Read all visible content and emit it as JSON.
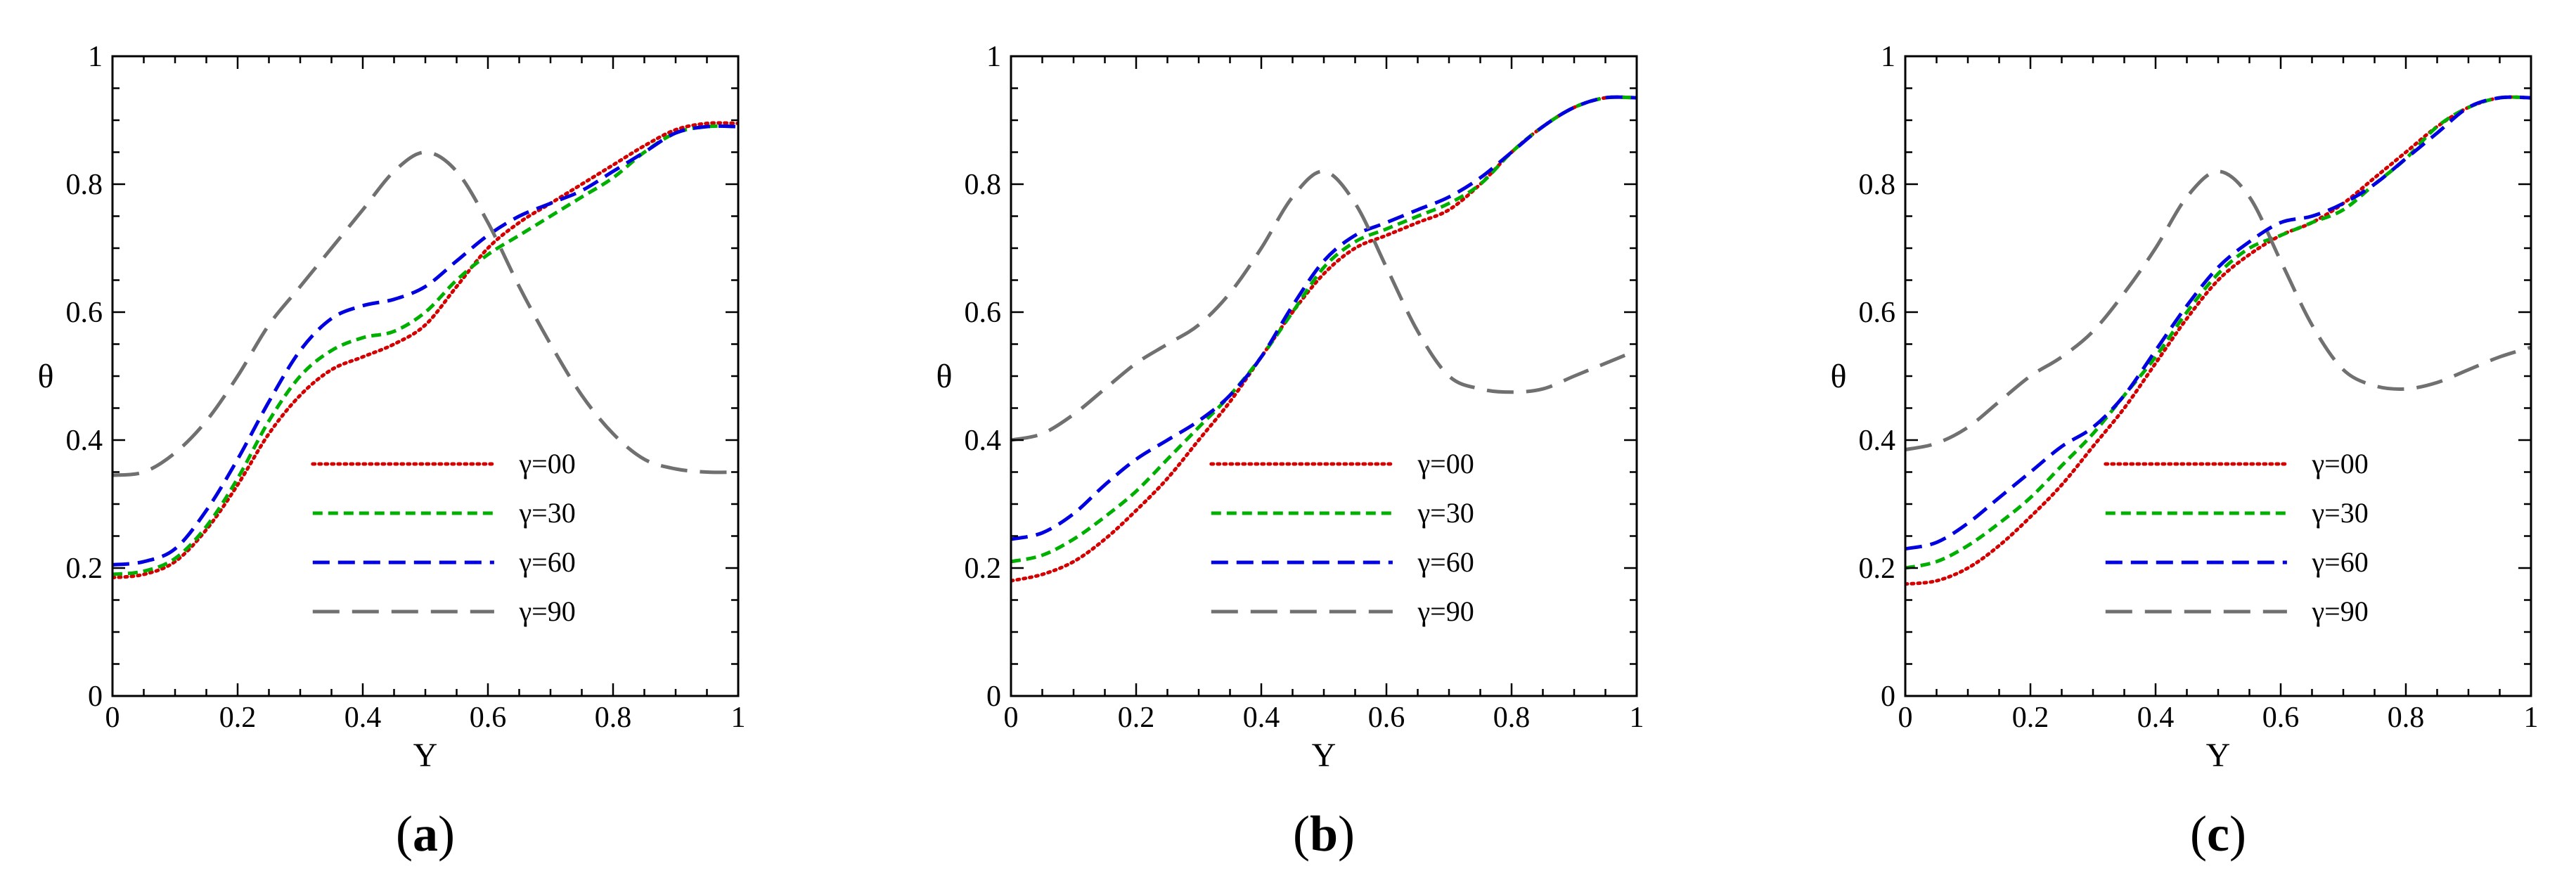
{
  "chart_data": [
    {
      "type": "line",
      "panel_label": "a",
      "xlabel": "Y",
      "ylabel": "θ",
      "xlim": [
        0,
        1
      ],
      "ylim": [
        0,
        1
      ],
      "x_ticks": [
        "0",
        "0.2",
        "0.4",
        "0.6",
        "0.8",
        "1"
      ],
      "y_ticks": [
        "0",
        "0.2",
        "0.4",
        "0.6",
        "0.8",
        "1"
      ],
      "legend_position": "center-right",
      "series": [
        {
          "name": "γ=00",
          "color": "#d40000",
          "dash": "dotted",
          "x": [
            0,
            0.05,
            0.1,
            0.15,
            0.2,
            0.25,
            0.3,
            0.35,
            0.4,
            0.45,
            0.5,
            0.55,
            0.6,
            0.65,
            0.7,
            0.75,
            0.8,
            0.85,
            0.9,
            0.95,
            1.0
          ],
          "y": [
            0.185,
            0.19,
            0.21,
            0.26,
            0.33,
            0.41,
            0.47,
            0.51,
            0.53,
            0.55,
            0.58,
            0.64,
            0.7,
            0.74,
            0.77,
            0.8,
            0.83,
            0.86,
            0.885,
            0.895,
            0.895
          ]
        },
        {
          "name": "γ=30",
          "color": "#00b000",
          "dash": "short-dash",
          "x": [
            0,
            0.05,
            0.1,
            0.15,
            0.2,
            0.25,
            0.3,
            0.35,
            0.4,
            0.45,
            0.5,
            0.55,
            0.6,
            0.65,
            0.7,
            0.75,
            0.8,
            0.85,
            0.9,
            0.95,
            1.0
          ],
          "y": [
            0.19,
            0.195,
            0.215,
            0.265,
            0.34,
            0.43,
            0.5,
            0.54,
            0.56,
            0.57,
            0.6,
            0.65,
            0.69,
            0.72,
            0.75,
            0.78,
            0.81,
            0.85,
            0.88,
            0.89,
            0.89
          ]
        },
        {
          "name": "γ=60",
          "color": "#0000e0",
          "dash": "dash",
          "x": [
            0,
            0.05,
            0.1,
            0.15,
            0.2,
            0.25,
            0.3,
            0.35,
            0.4,
            0.45,
            0.5,
            0.55,
            0.6,
            0.65,
            0.7,
            0.75,
            0.8,
            0.85,
            0.9,
            0.95,
            1.0
          ],
          "y": [
            0.205,
            0.21,
            0.23,
            0.29,
            0.37,
            0.46,
            0.54,
            0.59,
            0.61,
            0.62,
            0.64,
            0.68,
            0.72,
            0.75,
            0.77,
            0.79,
            0.82,
            0.85,
            0.88,
            0.89,
            0.89
          ]
        },
        {
          "name": "γ=90",
          "color": "#707070",
          "dash": "long-dash",
          "x": [
            0,
            0.05,
            0.1,
            0.15,
            0.2,
            0.25,
            0.3,
            0.35,
            0.4,
            0.45,
            0.5,
            0.55,
            0.6,
            0.65,
            0.7,
            0.75,
            0.8,
            0.85,
            0.9,
            0.95,
            1.0
          ],
          "y": [
            0.345,
            0.35,
            0.38,
            0.43,
            0.5,
            0.58,
            0.64,
            0.7,
            0.76,
            0.82,
            0.85,
            0.82,
            0.74,
            0.64,
            0.55,
            0.47,
            0.41,
            0.37,
            0.355,
            0.35,
            0.35
          ]
        }
      ]
    },
    {
      "type": "line",
      "panel_label": "b",
      "xlabel": "Y",
      "ylabel": "θ",
      "xlim": [
        0,
        1
      ],
      "ylim": [
        0,
        1
      ],
      "x_ticks": [
        "0",
        "0.2",
        "0.4",
        "0.6",
        "0.8",
        "1"
      ],
      "y_ticks": [
        "0",
        "0.2",
        "0.4",
        "0.6",
        "0.8",
        "1"
      ],
      "legend_position": "center-right",
      "series": [
        {
          "name": "γ=00",
          "color": "#d40000",
          "dash": "dotted",
          "x": [
            0,
            0.05,
            0.1,
            0.15,
            0.2,
            0.25,
            0.3,
            0.35,
            0.4,
            0.45,
            0.5,
            0.55,
            0.6,
            0.65,
            0.7,
            0.75,
            0.8,
            0.85,
            0.9,
            0.95,
            1.0
          ],
          "y": [
            0.18,
            0.19,
            0.21,
            0.245,
            0.29,
            0.34,
            0.4,
            0.46,
            0.53,
            0.6,
            0.66,
            0.7,
            0.72,
            0.74,
            0.76,
            0.8,
            0.85,
            0.89,
            0.92,
            0.935,
            0.935
          ]
        },
        {
          "name": "γ=30",
          "color": "#00b000",
          "dash": "short-dash",
          "x": [
            0,
            0.05,
            0.1,
            0.15,
            0.2,
            0.25,
            0.3,
            0.35,
            0.4,
            0.45,
            0.5,
            0.55,
            0.6,
            0.65,
            0.7,
            0.75,
            0.8,
            0.85,
            0.9,
            0.95,
            1.0
          ],
          "y": [
            0.21,
            0.22,
            0.245,
            0.28,
            0.32,
            0.37,
            0.42,
            0.47,
            0.53,
            0.6,
            0.67,
            0.71,
            0.73,
            0.75,
            0.77,
            0.8,
            0.85,
            0.89,
            0.92,
            0.935,
            0.935
          ]
        },
        {
          "name": "γ=60",
          "color": "#0000e0",
          "dash": "dash",
          "x": [
            0,
            0.05,
            0.1,
            0.15,
            0.2,
            0.25,
            0.3,
            0.35,
            0.4,
            0.45,
            0.5,
            0.55,
            0.6,
            0.65,
            0.7,
            0.75,
            0.8,
            0.85,
            0.9,
            0.95,
            1.0
          ],
          "y": [
            0.245,
            0.255,
            0.285,
            0.33,
            0.37,
            0.4,
            0.43,
            0.47,
            0.53,
            0.61,
            0.68,
            0.72,
            0.74,
            0.76,
            0.78,
            0.81,
            0.85,
            0.89,
            0.92,
            0.935,
            0.935
          ]
        },
        {
          "name": "γ=90",
          "color": "#707070",
          "dash": "long-dash",
          "x": [
            0,
            0.05,
            0.1,
            0.15,
            0.2,
            0.25,
            0.3,
            0.35,
            0.4,
            0.45,
            0.5,
            0.55,
            0.6,
            0.65,
            0.7,
            0.75,
            0.8,
            0.85,
            0.9,
            0.95,
            1.0
          ],
          "y": [
            0.4,
            0.41,
            0.44,
            0.48,
            0.52,
            0.55,
            0.58,
            0.63,
            0.7,
            0.78,
            0.82,
            0.77,
            0.67,
            0.57,
            0.5,
            0.48,
            0.475,
            0.48,
            0.5,
            0.52,
            0.54
          ]
        }
      ]
    },
    {
      "type": "line",
      "panel_label": "c",
      "xlabel": "Y",
      "ylabel": "θ",
      "xlim": [
        0,
        1
      ],
      "ylim": [
        0,
        1
      ],
      "x_ticks": [
        "0",
        "0.2",
        "0.4",
        "0.6",
        "0.8",
        "1"
      ],
      "y_ticks": [
        "0",
        "0.2",
        "0.4",
        "0.6",
        "0.8",
        "1"
      ],
      "legend_position": "center-right",
      "series": [
        {
          "name": "γ=00",
          "color": "#d40000",
          "dash": "dotted",
          "x": [
            0,
            0.05,
            0.1,
            0.15,
            0.2,
            0.25,
            0.3,
            0.35,
            0.4,
            0.45,
            0.5,
            0.55,
            0.6,
            0.65,
            0.7,
            0.75,
            0.8,
            0.85,
            0.9,
            0.95,
            1.0
          ],
          "y": [
            0.175,
            0.18,
            0.2,
            0.235,
            0.28,
            0.33,
            0.39,
            0.45,
            0.52,
            0.59,
            0.65,
            0.69,
            0.72,
            0.74,
            0.77,
            0.81,
            0.85,
            0.89,
            0.92,
            0.935,
            0.935
          ]
        },
        {
          "name": "γ=30",
          "color": "#00b000",
          "dash": "short-dash",
          "x": [
            0,
            0.05,
            0.1,
            0.15,
            0.2,
            0.25,
            0.3,
            0.35,
            0.4,
            0.45,
            0.5,
            0.55,
            0.6,
            0.65,
            0.7,
            0.75,
            0.8,
            0.85,
            0.9,
            0.95,
            1.0
          ],
          "y": [
            0.2,
            0.21,
            0.235,
            0.27,
            0.31,
            0.36,
            0.41,
            0.47,
            0.53,
            0.6,
            0.66,
            0.7,
            0.72,
            0.74,
            0.76,
            0.8,
            0.84,
            0.89,
            0.92,
            0.935,
            0.935
          ]
        },
        {
          "name": "γ=60",
          "color": "#0000e0",
          "dash": "dash",
          "x": [
            0,
            0.05,
            0.1,
            0.15,
            0.2,
            0.25,
            0.3,
            0.35,
            0.4,
            0.45,
            0.5,
            0.55,
            0.6,
            0.65,
            0.7,
            0.75,
            0.8,
            0.85,
            0.9,
            0.95,
            1.0
          ],
          "y": [
            0.23,
            0.24,
            0.27,
            0.31,
            0.35,
            0.39,
            0.42,
            0.47,
            0.54,
            0.61,
            0.67,
            0.71,
            0.74,
            0.75,
            0.77,
            0.8,
            0.84,
            0.88,
            0.92,
            0.935,
            0.935
          ]
        },
        {
          "name": "γ=90",
          "color": "#707070",
          "dash": "long-dash",
          "x": [
            0,
            0.05,
            0.1,
            0.15,
            0.2,
            0.25,
            0.3,
            0.35,
            0.4,
            0.45,
            0.5,
            0.55,
            0.6,
            0.65,
            0.7,
            0.75,
            0.8,
            0.85,
            0.9,
            0.95,
            1.0
          ],
          "y": [
            0.385,
            0.395,
            0.42,
            0.46,
            0.5,
            0.53,
            0.57,
            0.63,
            0.7,
            0.78,
            0.82,
            0.78,
            0.68,
            0.58,
            0.51,
            0.485,
            0.48,
            0.49,
            0.51,
            0.53,
            0.545
          ]
        }
      ]
    }
  ]
}
